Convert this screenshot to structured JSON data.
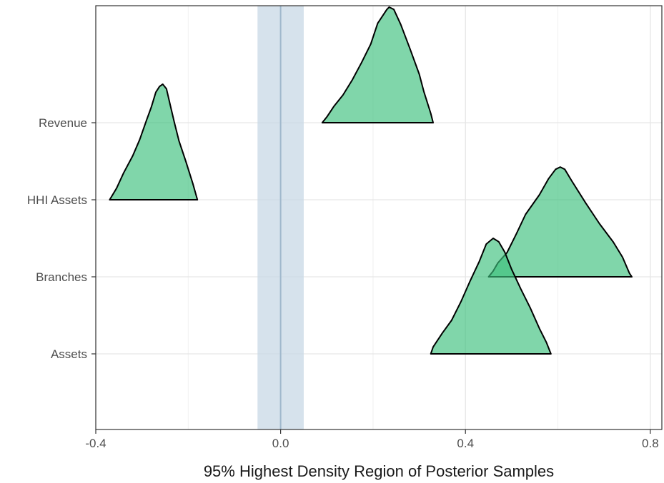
{
  "chart_data": {
    "type": "ridgeline",
    "title": "",
    "xlabel": "95% Highest Density Region of Posterior Samples",
    "ylabel": "",
    "xlim": [
      -0.4,
      0.825
    ],
    "x_ticks": [
      -0.4,
      0.0,
      0.4,
      0.8
    ],
    "x_tick_labels": [
      "-0.4",
      "0.0",
      "0.4",
      "0.8"
    ],
    "categories": [
      "Assets",
      "Branches",
      "HHI Assets",
      "Revenue"
    ],
    "rope": {
      "lower": -0.05,
      "upper": 0.05,
      "center": 0.0
    },
    "grid": true,
    "legend": "none",
    "colors": {
      "fill": "#3cc07d",
      "stroke": "#000000",
      "rope": "#c8d8e6",
      "rope_line": "#9fb8cc"
    },
    "series": [
      {
        "name": "Revenue",
        "baseline": "Revenue",
        "curve": [
          [
            0.09,
            0.0
          ],
          [
            0.1,
            0.05
          ],
          [
            0.115,
            0.14
          ],
          [
            0.135,
            0.24
          ],
          [
            0.155,
            0.37
          ],
          [
            0.175,
            0.52
          ],
          [
            0.195,
            0.68
          ],
          [
            0.21,
            0.86
          ],
          [
            0.23,
            0.98
          ],
          [
            0.235,
            1.0
          ],
          [
            0.245,
            0.98
          ],
          [
            0.26,
            0.85
          ],
          [
            0.28,
            0.64
          ],
          [
            0.3,
            0.42
          ],
          [
            0.31,
            0.27
          ],
          [
            0.325,
            0.08
          ],
          [
            0.33,
            0.0
          ]
        ]
      },
      {
        "name": "HHI Assets",
        "baseline": "HHI Assets",
        "curve": [
          [
            -0.37,
            0.0
          ],
          [
            -0.355,
            0.1
          ],
          [
            -0.34,
            0.23
          ],
          [
            -0.32,
            0.38
          ],
          [
            -0.305,
            0.52
          ],
          [
            -0.29,
            0.69
          ],
          [
            -0.28,
            0.8
          ],
          [
            -0.27,
            0.93
          ],
          [
            -0.262,
            0.98
          ],
          [
            -0.255,
            1.0
          ],
          [
            -0.247,
            0.96
          ],
          [
            -0.24,
            0.84
          ],
          [
            -0.23,
            0.67
          ],
          [
            -0.22,
            0.51
          ],
          [
            -0.205,
            0.33
          ],
          [
            -0.19,
            0.14
          ],
          [
            -0.18,
            0.0
          ]
        ]
      },
      {
        "name": "Branches",
        "baseline": "Branches",
        "curve": [
          [
            0.45,
            0.0
          ],
          [
            0.46,
            0.05
          ],
          [
            0.47,
            0.12
          ],
          [
            0.49,
            0.21
          ],
          [
            0.51,
            0.37
          ],
          [
            0.53,
            0.54
          ],
          [
            0.56,
            0.71
          ],
          [
            0.58,
            0.85
          ],
          [
            0.595,
            0.93
          ],
          [
            0.605,
            0.95
          ],
          [
            0.615,
            0.93
          ],
          [
            0.63,
            0.83
          ],
          [
            0.66,
            0.64
          ],
          [
            0.69,
            0.46
          ],
          [
            0.72,
            0.3
          ],
          [
            0.74,
            0.17
          ],
          [
            0.755,
            0.03
          ],
          [
            0.76,
            0.0
          ]
        ]
      },
      {
        "name": "Assets",
        "baseline": "Assets",
        "curve": [
          [
            0.325,
            0.0
          ],
          [
            0.33,
            0.06
          ],
          [
            0.35,
            0.18
          ],
          [
            0.37,
            0.29
          ],
          [
            0.39,
            0.45
          ],
          [
            0.41,
            0.63
          ],
          [
            0.43,
            0.8
          ],
          [
            0.445,
            0.95
          ],
          [
            0.46,
            1.0
          ],
          [
            0.472,
            0.97
          ],
          [
            0.485,
            0.88
          ],
          [
            0.5,
            0.73
          ],
          [
            0.52,
            0.56
          ],
          [
            0.54,
            0.4
          ],
          [
            0.56,
            0.22
          ],
          [
            0.575,
            0.1
          ],
          [
            0.585,
            0.0
          ]
        ]
      }
    ]
  }
}
